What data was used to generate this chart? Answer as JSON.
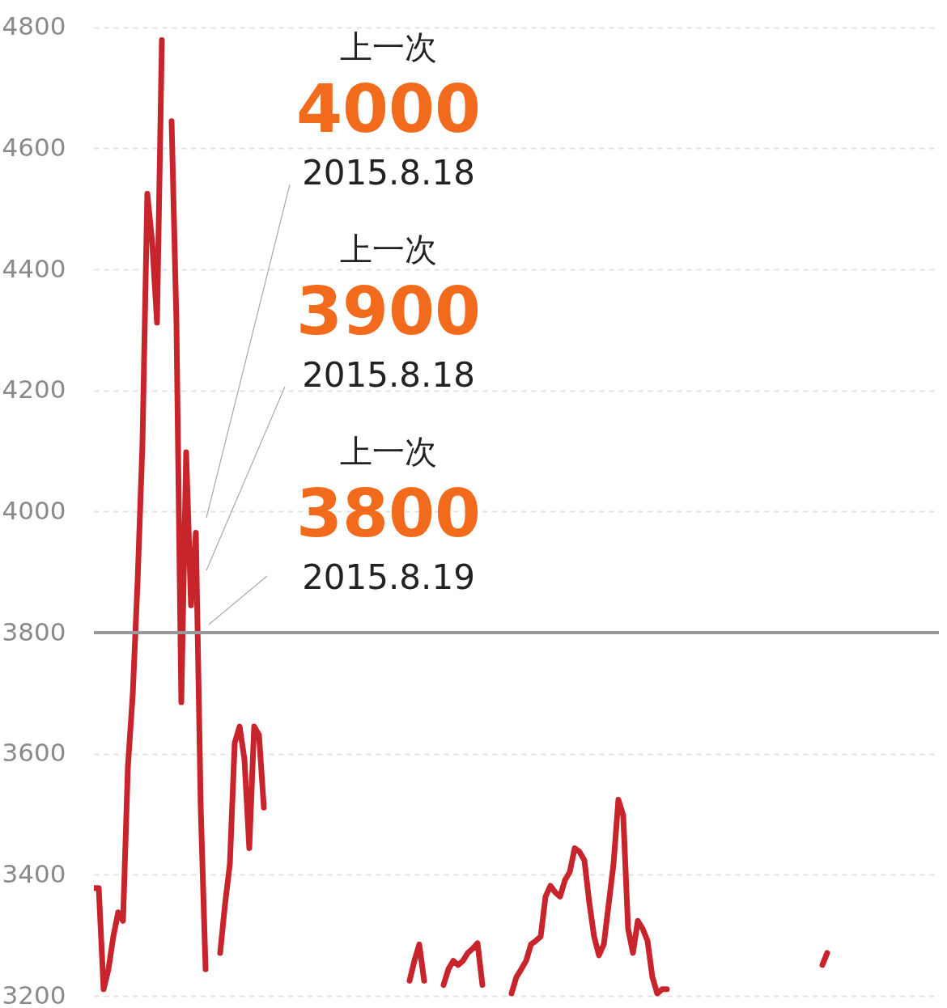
{
  "chart_data": {
    "type": "line",
    "categories": [
      null,
      null,
      null,
      null,
      null,
      null,
      null,
      null,
      null,
      null,
      null,
      null,
      null,
      null,
      null,
      null,
      null,
      null,
      null,
      null,
      null,
      null,
      null,
      null,
      null,
      null,
      null,
      null,
      null,
      null,
      null,
      null,
      null,
      null,
      null,
      null,
      null,
      null,
      null,
      null,
      null,
      null,
      null,
      null,
      null,
      null,
      null,
      null,
      null,
      null,
      null,
      null,
      null,
      null,
      null,
      null,
      null,
      null,
      null,
      null,
      null,
      null,
      null,
      null,
      null,
      null,
      null,
      null,
      null,
      null,
      null,
      null,
      null,
      null,
      null,
      null,
      null,
      null,
      null,
      null,
      null,
      null,
      null,
      null,
      null,
      null,
      null,
      null,
      null,
      null,
      null,
      null,
      null,
      null,
      null,
      null,
      null,
      null,
      null,
      null,
      null,
      null,
      null,
      null,
      null,
      null,
      null,
      null,
      null,
      null,
      null,
      null,
      null,
      null,
      null,
      null,
      null,
      null,
      null,
      null,
      null,
      null,
      null,
      null,
      null,
      null,
      null,
      null,
      null,
      null,
      null,
      null,
      null,
      null,
      null,
      null,
      null,
      null,
      null,
      null,
      null,
      null,
      null,
      null,
      null,
      null,
      null,
      null,
      null,
      null,
      null,
      null,
      null,
      null,
      null,
      null,
      null,
      null,
      null,
      null,
      null,
      null,
      null,
      null,
      null,
      null,
      null,
      null,
      null,
      null,
      null,
      null,
      null,
      null,
      null
    ],
    "series": [
      {
        "color": "#c8242b",
        "values": [
          3378,
          3378,
          3211,
          3244,
          3298,
          3338,
          3324,
          3578,
          3698,
          3885,
          4112,
          4525,
          4445,
          4312,
          4779,
          null,
          4645,
          4312,
          3685,
          4098,
          3845,
          3965,
          3511,
          3244,
          null,
          null,
          3271,
          3351,
          3418,
          3618,
          3645,
          3591,
          3444,
          3645,
          3631,
          3511,
          null,
          null,
          null,
          null,
          null,
          null,
          null,
          null,
          null,
          null,
          null,
          null,
          null,
          null,
          null,
          null,
          null,
          null,
          null,
          null,
          null,
          null,
          null,
          null,
          null,
          null,
          null,
          null,
          null,
          3225,
          3258,
          3285,
          3225,
          null,
          null,
          null,
          3218,
          3244,
          3258,
          3251,
          3258,
          3271,
          3278,
          3287,
          3218,
          null,
          null,
          null,
          null,
          null,
          3204,
          3231,
          3244,
          3258,
          3285,
          3291,
          3298,
          3364,
          3382,
          3371,
          3364,
          3391,
          3405,
          3444,
          3438,
          3424,
          3355,
          3298,
          3267,
          3285,
          3351,
          3418,
          3524,
          3498,
          3311,
          3271,
          3324,
          3311,
          3291,
          3231,
          3204,
          3211,
          3211,
          null,
          null,
          null,
          null,
          null,
          null,
          null,
          null,
          null,
          null,
          null,
          null,
          null,
          null,
          null,
          null,
          null,
          null,
          null,
          null,
          null,
          null,
          null,
          null,
          null,
          null,
          null,
          null,
          null,
          null,
          null,
          3251,
          3271,
          null,
          null,
          null,
          null,
          null,
          null,
          null,
          null,
          null,
          null,
          null,
          null,
          null,
          null,
          null,
          null,
          null,
          null,
          null,
          null,
          null,
          null,
          null
        ]
      }
    ],
    "ylim": [
      3180,
      4845
    ],
    "yticks": [
      3200,
      3400,
      3600,
      3800,
      4000,
      4200,
      4400,
      4600,
      4800
    ],
    "grid": "y",
    "tick_labels": "y",
    "ref_lines": [
      {
        "axis": "y",
        "value": 3800,
        "color": "#999999"
      }
    ],
    "annotations": [
      "上一次",
      "4000",
      "2015.8.18",
      "上一次",
      "3900",
      "2015.8.18",
      "上一次",
      "3800",
      "2015.8.19"
    ]
  }
}
